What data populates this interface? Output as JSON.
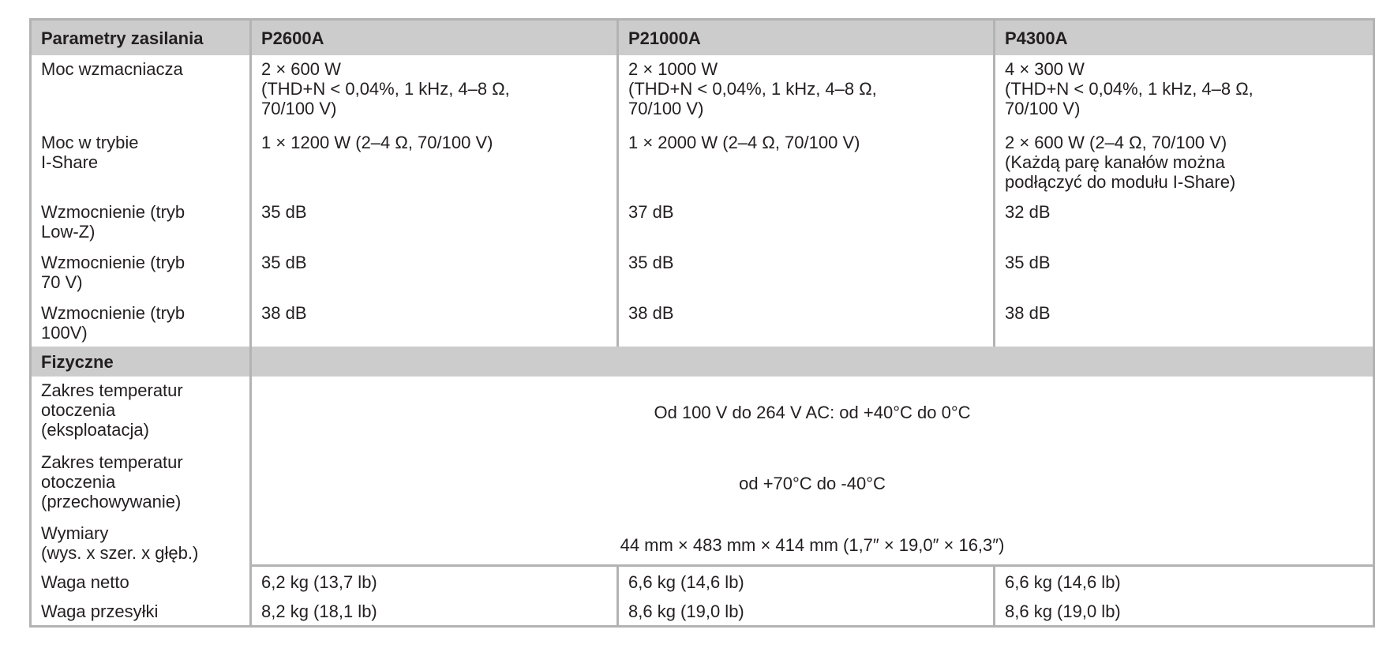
{
  "table": {
    "header": [
      "Parametry zasilania",
      "P2600A",
      "P21000A",
      "P4300A"
    ],
    "power_rows": [
      {
        "label": "Moc wzmacniacza",
        "values": [
          "2 × 600 W\n(THD+N < 0,04%, 1 kHz, 4–8 Ω,\n70/100 V)",
          "2 × 1000 W\n(THD+N < 0,04%, 1 kHz, 4–8 Ω,\n70/100 V)",
          "4 × 300 W\n(THD+N < 0,04%, 1 kHz, 4–8 Ω,\n70/100 V)"
        ]
      },
      {
        "label": "Moc w trybie\nI-Share",
        "values": [
          "1 × 1200 W (2–4 Ω, 70/100 V)",
          "1 × 2000 W (2–4 Ω, 70/100 V)",
          "2 × 600 W (2–4 Ω, 70/100 V)\n(Każdą parę kanałów można\npodłączyć do modułu I-Share)"
        ]
      },
      {
        "label": "Wzmocnienie (tryb\nLow-Z)",
        "values": [
          "35 dB",
          "37 dB",
          "32 dB"
        ]
      },
      {
        "label": "Wzmocnienie (tryb\n70 V)",
        "values": [
          "35 dB",
          "35 dB",
          "35 dB"
        ]
      },
      {
        "label": "Wzmocnienie (tryb\n100V)",
        "values": [
          "38 dB",
          "38 dB",
          "38 dB"
        ]
      }
    ],
    "section_physical": "Fizyczne",
    "physical_span_rows": [
      {
        "label": "Zakres temperatur\notoczenia\n(eksploatacja)",
        "value": "Od 100 V do 264 V AC: od +40°C do 0°C"
      },
      {
        "label": "Zakres temperatur\notoczenia\n(przechowywanie)",
        "value": "od +70°C do -40°C"
      },
      {
        "label": "Wymiary\n(wys. x szer. x głęb.)",
        "value": "44 mm × 483 mm × 414 mm (1,7″ × 19,0″ × 16,3″)"
      }
    ],
    "weight_rows": [
      {
        "label": "Waga netto",
        "values": [
          "6,2 kg (13,7 lb)",
          "6,6 kg (14,6 lb)",
          "6,6 kg (14,6 lb)"
        ]
      },
      {
        "label": "Waga przesyłki",
        "values": [
          "8,2 kg (18,1 lb)",
          "8,6 kg (19,0 lb)",
          "8,6 kg (19,0 lb)"
        ]
      }
    ]
  }
}
